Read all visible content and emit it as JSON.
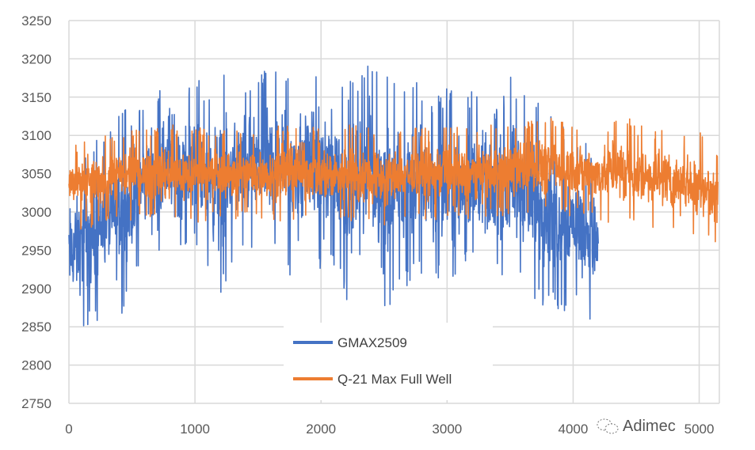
{
  "chart_data": {
    "type": "line",
    "title": "",
    "xlabel": "",
    "ylabel": "",
    "xlim": [
      0,
      5160
    ],
    "ylim": [
      2750,
      3250
    ],
    "xticks": [
      "0",
      "1000",
      "2000",
      "3000",
      "4000",
      "5000"
    ],
    "yticks": [
      "2750",
      "2800",
      "2850",
      "2900",
      "2950",
      "3000",
      "3050",
      "3100",
      "3150",
      "3200",
      "3250"
    ],
    "grid": true,
    "legend_position": "bottom-center",
    "series": [
      {
        "name": "GMAX2509",
        "color": "#4472C4",
        "envelope_x": [
          0,
          100,
          200,
          300,
          400,
          500,
          600,
          700,
          800,
          900,
          1000,
          1100,
          1200,
          1300,
          1400,
          1500,
          1600,
          1700,
          1800,
          1900,
          2000,
          2100,
          2200,
          2300,
          2400,
          2500,
          2600,
          2700,
          2800,
          2900,
          3000,
          3100,
          3200,
          3300,
          3400,
          3500,
          3600,
          3700,
          3800,
          3900,
          4000,
          4100,
          4200
        ],
        "envelope_min": [
          2830,
          2840,
          2850,
          2880,
          2850,
          2900,
          2930,
          2930,
          2940,
          2940,
          2950,
          2920,
          2875,
          2940,
          2950,
          2940,
          2930,
          2960,
          2880,
          2950,
          2920,
          2930,
          2880,
          2920,
          2910,
          2855,
          2900,
          2900,
          2920,
          2910,
          2900,
          2920,
          2930,
          2920,
          2920,
          2880,
          2900,
          2870,
          2880,
          2860,
          2880,
          2860,
          2840
        ],
        "envelope_max": [
          3060,
          3080,
          3100,
          3100,
          3140,
          3130,
          3155,
          3160,
          3205,
          3165,
          3180,
          3160,
          3185,
          3170,
          3175,
          3180,
          3200,
          3190,
          3208,
          3190,
          3180,
          3180,
          3170,
          3175,
          3205,
          3190,
          3165,
          3170,
          3170,
          3150,
          3165,
          3150,
          3160,
          3150,
          3140,
          3180,
          3170,
          3150,
          3130,
          3120,
          3100,
          3090,
          3070
        ]
      },
      {
        "name": "Q-21 Max Full Well",
        "color": "#ED7D31",
        "envelope_x": [
          0,
          200,
          400,
          600,
          800,
          1000,
          1200,
          1400,
          1600,
          1800,
          2000,
          2200,
          2400,
          2600,
          2800,
          3000,
          3200,
          3400,
          3600,
          3800,
          4000,
          4200,
          4400,
          4600,
          4800,
          5000,
          5150
        ],
        "envelope_min": [
          2975,
          2980,
          2985,
          2990,
          2985,
          2985,
          2990,
          2990,
          2990,
          2985,
          2990,
          2985,
          2980,
          2985,
          2990,
          2990,
          2990,
          2995,
          2995,
          2995,
          2995,
          2990,
          2980,
          2980,
          2975,
          2965,
          2960
        ],
        "envelope_max": [
          3100,
          3095,
          3105,
          3110,
          3115,
          3110,
          3110,
          3110,
          3110,
          3120,
          3110,
          3115,
          3110,
          3110,
          3110,
          3115,
          3110,
          3115,
          3120,
          3125,
          3115,
          3110,
          3125,
          3115,
          3110,
          3105,
          3080
        ]
      }
    ]
  },
  "watermark": "Adimec"
}
